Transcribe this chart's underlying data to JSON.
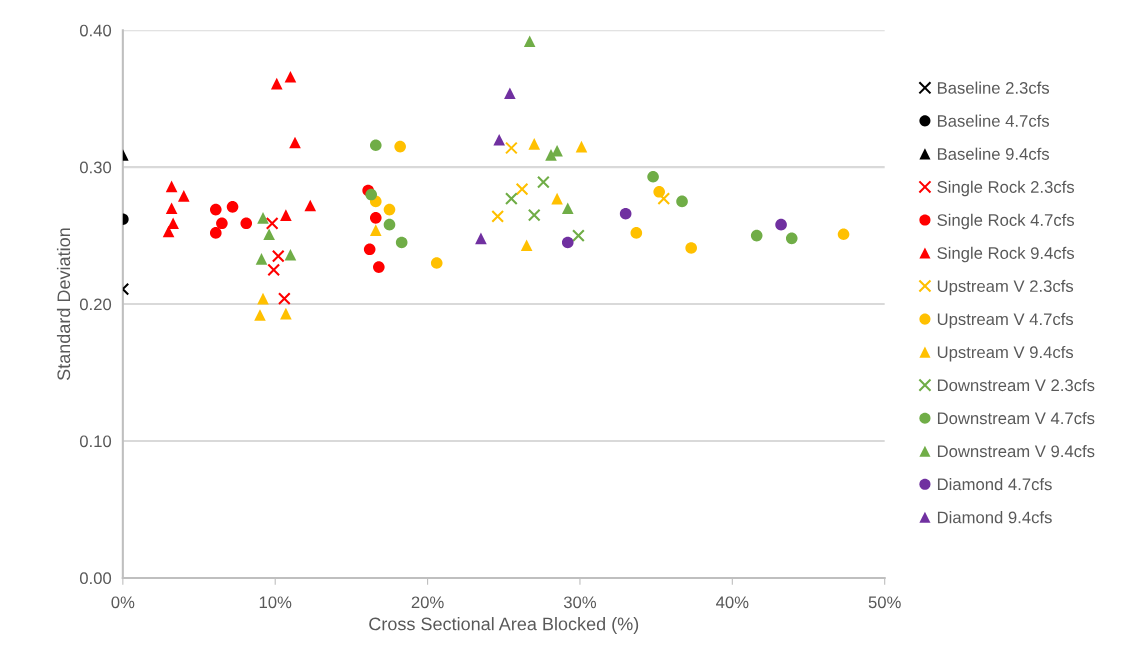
{
  "chart_data": {
    "type": "scatter",
    "xlabel": "Cross Sectional Area Blocked (%)",
    "ylabel": "Standard Deviation",
    "xlim": [
      0,
      50
    ],
    "ylim": [
      0,
      0.4
    ],
    "xticks": [
      {
        "value": 0,
        "label": "0%"
      },
      {
        "value": 10,
        "label": "10%"
      },
      {
        "value": 20,
        "label": "20%"
      },
      {
        "value": 30,
        "label": "30%"
      },
      {
        "value": 40,
        "label": "40%"
      },
      {
        "value": 50,
        "label": "50%"
      }
    ],
    "yticks": [
      {
        "value": 0,
        "label": "0.00"
      },
      {
        "value": 0.1,
        "label": "0.10"
      },
      {
        "value": 0.2,
        "label": "0.20"
      },
      {
        "value": 0.3,
        "label": "0.30"
      },
      {
        "value": 0.4,
        "label": "0.40"
      }
    ],
    "grid": "y",
    "legend": "right",
    "series": [
      {
        "name": "Baseline 2.3cfs",
        "color": "#000000",
        "marker": "cross",
        "x": [
          0
        ],
        "values": [
          0.211
        ]
      },
      {
        "name": "Baseline 4.7cfs",
        "color": "#000000",
        "marker": "circle",
        "x": [
          0
        ],
        "values": [
          0.262
        ]
      },
      {
        "name": "Baseline 9.4cfs",
        "color": "#000000",
        "marker": "triangle",
        "x": [
          0
        ],
        "values": [
          0.309
        ]
      },
      {
        "name": "Single Rock 2.3cfs",
        "color": "#ff0000",
        "marker": "cross",
        "x": [
          9.8,
          10.2,
          9.9,
          10.6
        ],
        "values": [
          0.259,
          0.235,
          0.225,
          0.204
        ]
      },
      {
        "name": "Single Rock 4.7cfs",
        "color": "#ff0000",
        "marker": "circle",
        "x": [
          6.1,
          7.2,
          6.5,
          6.1,
          8.1,
          15.9,
          16.1,
          16.6,
          16.2,
          16.8
        ],
        "values": [
          0.269,
          0.271,
          0.259,
          0.252,
          0.259,
          null,
          0.283,
          0.263,
          0.24,
          0.227
        ]
      },
      {
        "name": "Single Rock 9.4cfs",
        "color": "#ff0000",
        "marker": "triangle",
        "x": [
          3.2,
          4.0,
          3.2,
          3.3,
          3.0,
          11.3,
          10.7,
          12.3,
          10.1,
          11.0
        ],
        "values": [
          0.286,
          0.279,
          0.27,
          0.259,
          0.253,
          0.318,
          0.265,
          0.272,
          0.361,
          0.366
        ]
      },
      {
        "name": "Upstream V 2.3cfs",
        "color": "#ffc000",
        "marker": "cross",
        "x": [
          25.5,
          26.2,
          24.6,
          35.5
        ],
        "values": [
          0.314,
          0.284,
          0.264,
          0.277
        ]
      },
      {
        "name": "Upstream V 4.7cfs",
        "color": "#ffc000",
        "marker": "circle",
        "x": [
          18.2,
          16.6,
          17.5,
          20.6,
          35.2,
          33.7,
          37.3,
          47.3
        ],
        "values": [
          0.315,
          0.275,
          0.269,
          0.23,
          0.282,
          0.252,
          0.241,
          0.251
        ]
      },
      {
        "name": "Upstream V 9.4cfs",
        "color": "#ffc000",
        "marker": "triangle",
        "x": [
          9.2,
          9.0,
          10.7,
          16.6,
          27.0,
          30.1,
          28.5,
          26.5
        ],
        "values": [
          0.204,
          0.192,
          0.193,
          0.254,
          0.317,
          0.315,
          0.277,
          0.243
        ]
      },
      {
        "name": "Downstream V 2.3cfs",
        "color": "#70ad47",
        "marker": "cross",
        "x": [
          27.6,
          25.5,
          27.0,
          29.9
        ],
        "values": [
          0.289,
          0.277,
          0.265,
          0.25
        ]
      },
      {
        "name": "Downstream V 4.7cfs",
        "color": "#70ad47",
        "marker": "circle",
        "x": [
          16.6,
          16.3,
          17.5,
          18.3,
          34.8,
          36.7,
          41.6,
          43.9
        ],
        "values": [
          0.316,
          0.28,
          0.258,
          0.245,
          0.293,
          0.275,
          0.25,
          0.248
        ]
      },
      {
        "name": "Downstream V 9.4cfs",
        "color": "#70ad47",
        "marker": "triangle",
        "x": [
          9.2,
          9.6,
          9.1,
          11.0,
          26.7,
          28.1,
          28.5,
          29.2
        ],
        "values": [
          0.263,
          0.251,
          0.233,
          0.236,
          0.392,
          0.309,
          0.312,
          0.27
        ]
      },
      {
        "name": "Diamond 4.7cfs",
        "color": "#7030a0",
        "marker": "circle",
        "x": [
          29.2,
          33.0,
          43.2
        ],
        "values": [
          0.245,
          0.266,
          0.258
        ]
      },
      {
        "name": "Diamond 9.4cfs",
        "color": "#7030a0",
        "marker": "triangle",
        "x": [
          25.4,
          24.7,
          23.5
        ],
        "values": [
          0.354,
          0.32,
          0.248
        ]
      }
    ]
  }
}
